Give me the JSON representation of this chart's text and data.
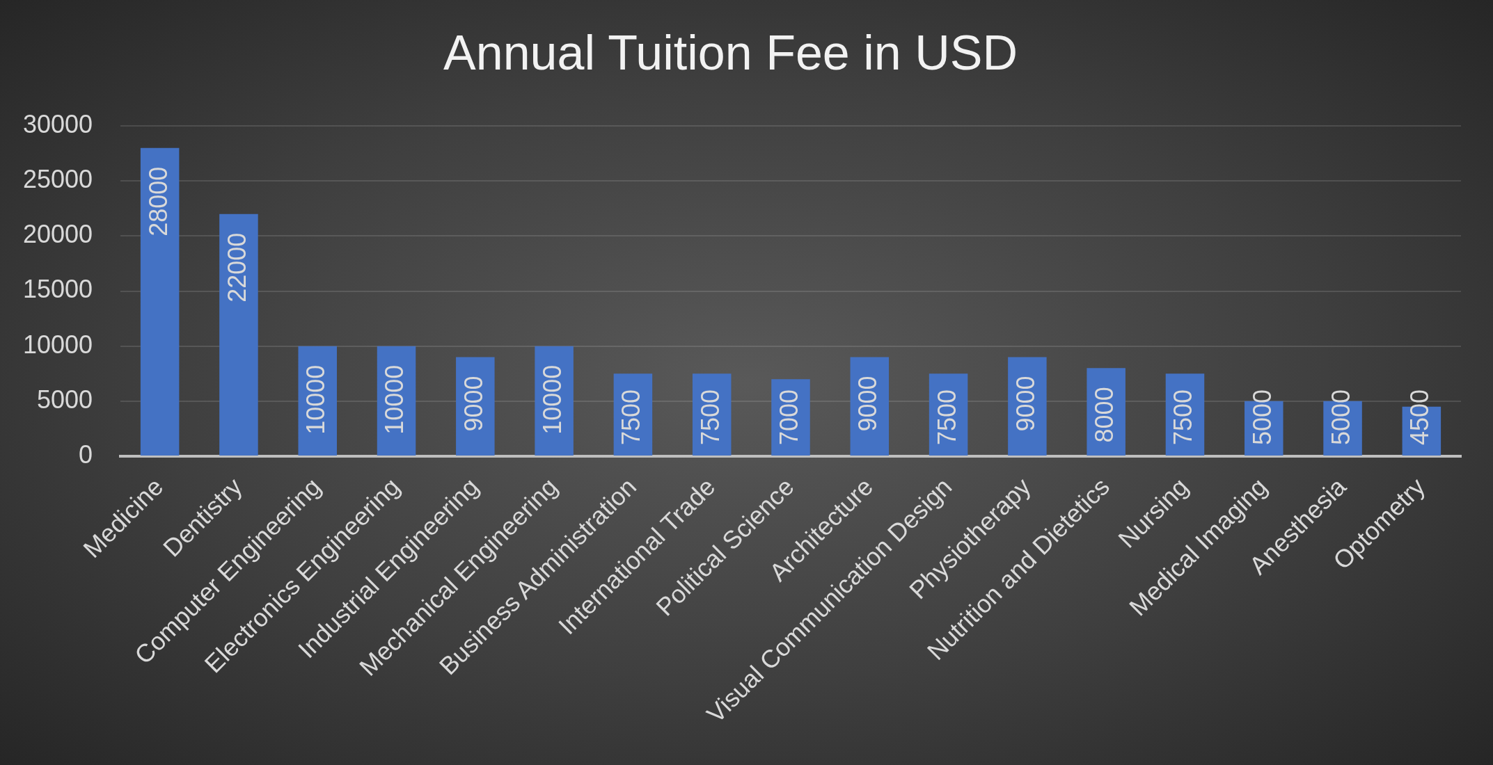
{
  "chart_data": {
    "type": "bar",
    "title": "Annual Tuition Fee in USD",
    "categories": [
      "Medicine",
      "Dentistry",
      "Computer Engineering",
      "Electronics Engineering",
      "Industrial Engineering",
      "Mechanical Engineering",
      "Business Administration",
      "International Trade",
      "Political Science",
      "Architecture",
      "Visual Communication Design",
      "Physiotherapy",
      "Nutrition and Dietetics",
      "Nursing",
      "Medical Imaging",
      "Anesthesia",
      "Optometry"
    ],
    "values": [
      28000,
      22000,
      10000,
      10000,
      9000,
      10000,
      7500,
      7500,
      7000,
      9000,
      7500,
      9000,
      8000,
      7500,
      5000,
      5000,
      4500
    ],
    "color": "#4472c4",
    "ylim": [
      0,
      30000
    ],
    "yticks": [
      0,
      5000,
      10000,
      15000,
      20000,
      25000,
      30000
    ],
    "grid": "y",
    "data_labels": true
  }
}
